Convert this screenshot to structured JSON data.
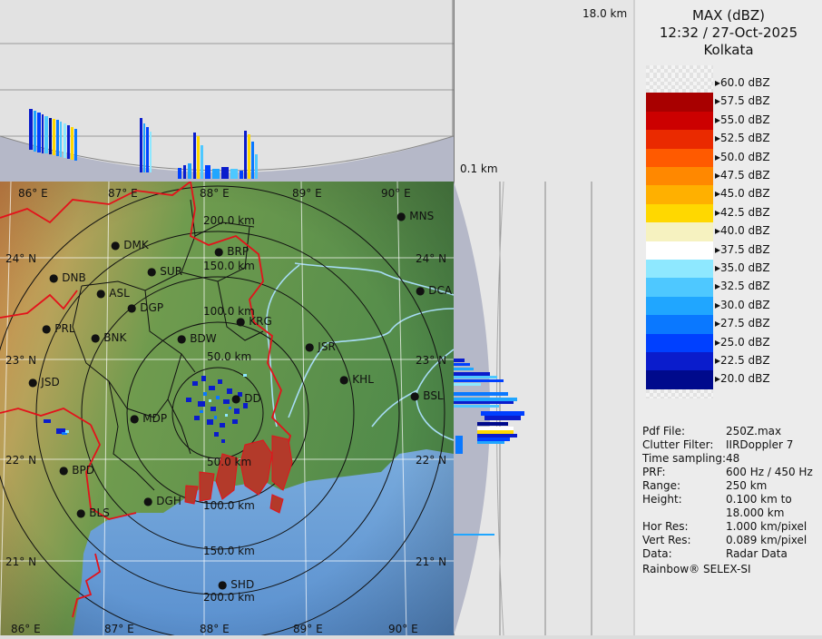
{
  "product": "MAX (dBZ)",
  "datetime": "12:32 / 27-Oct-2025",
  "station": "Kolkata",
  "top_label": "18.0 km",
  "side_label": "0.1 km",
  "legend": {
    "items": [
      {
        "label": "60.0 dBZ",
        "color": "checker"
      },
      {
        "label": "57.5 dBZ",
        "color": "#a80000"
      },
      {
        "label": "55.0 dBZ",
        "color": "#cc0000"
      },
      {
        "label": "52.5 dBZ",
        "color": "#ea2a00"
      },
      {
        "label": "50.0 dBZ",
        "color": "#ff5a00"
      },
      {
        "label": "47.5 dBZ",
        "color": "#ff8800"
      },
      {
        "label": "45.0 dBZ",
        "color": "#ffb000"
      },
      {
        "label": "42.5 dBZ",
        "color": "#ffd800"
      },
      {
        "label": "40.0 dBZ",
        "color": "#f6f2c0"
      },
      {
        "label": "37.5 dBZ",
        "color": "#ffffff"
      },
      {
        "label": "35.0 dBZ",
        "color": "#8ee8ff"
      },
      {
        "label": "32.5 dBZ",
        "color": "#4ec8ff"
      },
      {
        "label": "30.0 dBZ",
        "color": "#20a6ff"
      },
      {
        "label": "27.5 dBZ",
        "color": "#0a78ff"
      },
      {
        "label": "25.0 dBZ",
        "color": "#0040ff"
      },
      {
        "label": "22.5 dBZ",
        "color": "#0a1ccc"
      },
      {
        "label": "20.0 dBZ",
        "color": "#000a8c"
      }
    ]
  },
  "info": [
    {
      "key": "Pdf File:",
      "value": "250Z.max"
    },
    {
      "key": "Clutter Filter:",
      "value": "IIRDoppler 7"
    },
    {
      "key": "Time sampling:",
      "value": "48"
    },
    {
      "key": "PRF:",
      "value": "600 Hz / 450 Hz"
    },
    {
      "key": "Range:",
      "value": "250 km"
    },
    {
      "key": "Height:",
      "value": "0.100 km to"
    },
    {
      "key": "",
      "value": "18.000 km"
    },
    {
      "key": "Hor Res:",
      "value": "1.000 km/pixel"
    },
    {
      "key": "Vert Res:",
      "value": "0.089 km/pixel"
    },
    {
      "key": "Data:",
      "value": "Radar Data"
    }
  ],
  "footer": "Rainbow® SELEX-SI",
  "map": {
    "lon_labels_top": [
      "86° E",
      "87° E",
      "88° E",
      "89° E",
      "90° E"
    ],
    "lon_labels_bottom": [
      "86° E",
      "87° E",
      "88° E",
      "89° E",
      "90° E"
    ],
    "lat_labels_left": [
      "24° N",
      "23° N",
      "22° N",
      "21° N"
    ],
    "lat_labels_right": [
      "24° N",
      "23° N",
      "22° N",
      "21° N"
    ],
    "range_rings_north": [
      "200.0 km",
      "150.0 km",
      "100.0 km",
      "50.0 km"
    ],
    "range_rings_south": [
      "50.0 km",
      "100.0 km",
      "150.0 km",
      "200.0 km"
    ],
    "cities": [
      {
        "code": "MNS"
      },
      {
        "code": "DMK"
      },
      {
        "code": "BRP"
      },
      {
        "code": "DNB"
      },
      {
        "code": "SUR"
      },
      {
        "code": "DCA"
      },
      {
        "code": "ASL"
      },
      {
        "code": "DGP"
      },
      {
        "code": "KRG"
      },
      {
        "code": "PRL"
      },
      {
        "code": "BNK"
      },
      {
        "code": "BDW"
      },
      {
        "code": "JSR"
      },
      {
        "code": "KHL"
      },
      {
        "code": "JSD"
      },
      {
        "code": "DD"
      },
      {
        "code": "BSL"
      },
      {
        "code": "MDP"
      },
      {
        "code": "BPD"
      },
      {
        "code": "DGH"
      },
      {
        "code": "BLS"
      },
      {
        "code": "SHD"
      }
    ]
  }
}
